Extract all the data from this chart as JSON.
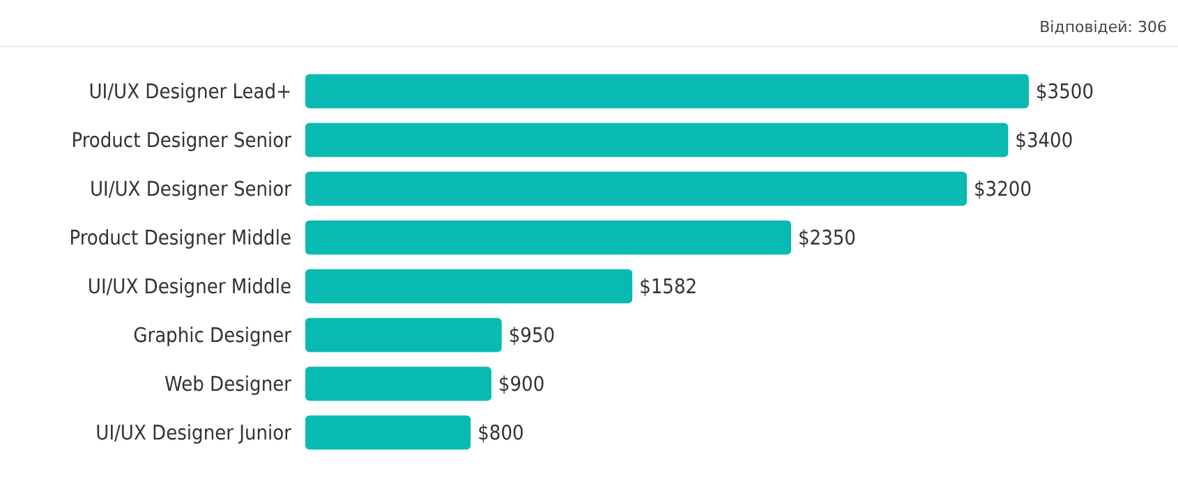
{
  "chart_data": {
    "type": "bar",
    "orientation": "horizontal",
    "categories": [
      "UI/UX Designer Lead+",
      "Product Designer Senior",
      "UI/UX Designer Senior",
      "Product Designer Middle",
      "UI/UX Designer Middle",
      "Graphic Designer",
      "Web Designer",
      "UI/UX Designer Junior"
    ],
    "values": [
      3500,
      3400,
      3200,
      2350,
      1582,
      950,
      900,
      800
    ],
    "value_labels": [
      "$3500",
      "$3400",
      "$3200",
      "$2350",
      "$1582",
      "$950",
      "$900",
      "$800"
    ],
    "color": "#08bab1",
    "annotations": [
      "Відповідей: 306"
    ]
  }
}
